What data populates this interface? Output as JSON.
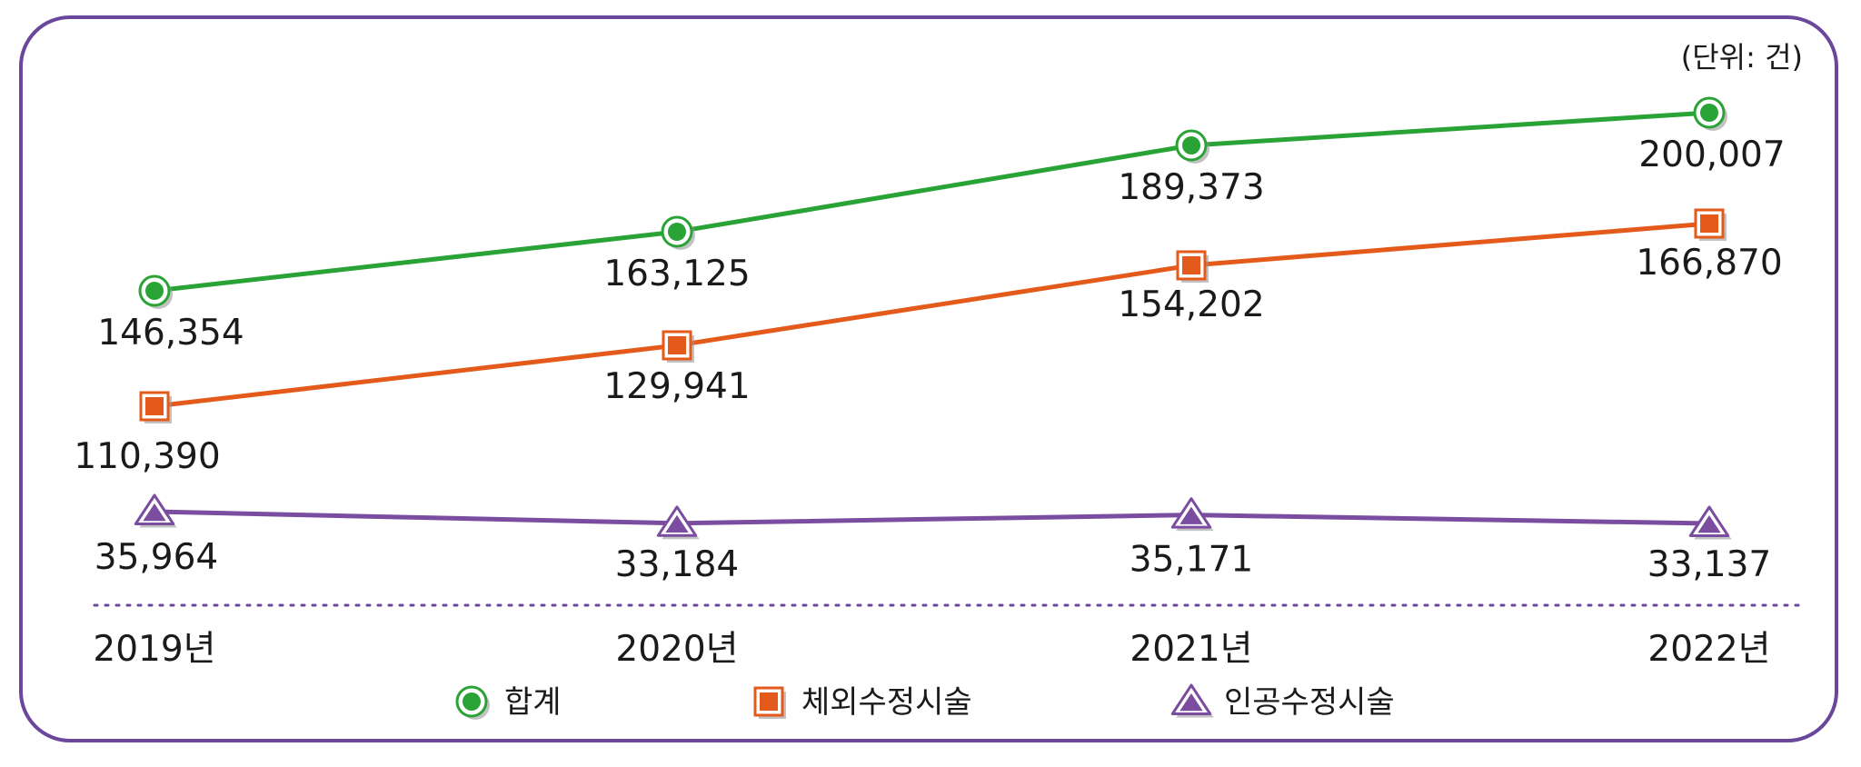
{
  "chart_data": {
    "type": "line",
    "unit_label": "(단위: 건)",
    "categories": [
      "2019년",
      "2020년",
      "2021년",
      "2022년"
    ],
    "ylim": [
      0,
      220000
    ],
    "grid": false,
    "legend_position": "bottom",
    "series": [
      {
        "name": "합계",
        "values": [
          146354,
          163125,
          189373,
          200007
        ],
        "value_labels": [
          "146,354",
          "163,125",
          "189,373",
          "200,007"
        ],
        "color": "#2aa336",
        "marker": "circle"
      },
      {
        "name": "체외수정시술",
        "values": [
          110390,
          129941,
          154202,
          166870
        ],
        "value_labels": [
          "110,390",
          "129,941",
          "154,202",
          "166,870"
        ],
        "color": "#e35a1b",
        "marker": "square"
      },
      {
        "name": "인공수정시술",
        "values": [
          35964,
          33184,
          35171,
          33137
        ],
        "value_labels": [
          "35,964",
          "33,184",
          "35,171",
          "33,137"
        ],
        "color": "#7b4da0",
        "marker": "triangle"
      }
    ]
  }
}
